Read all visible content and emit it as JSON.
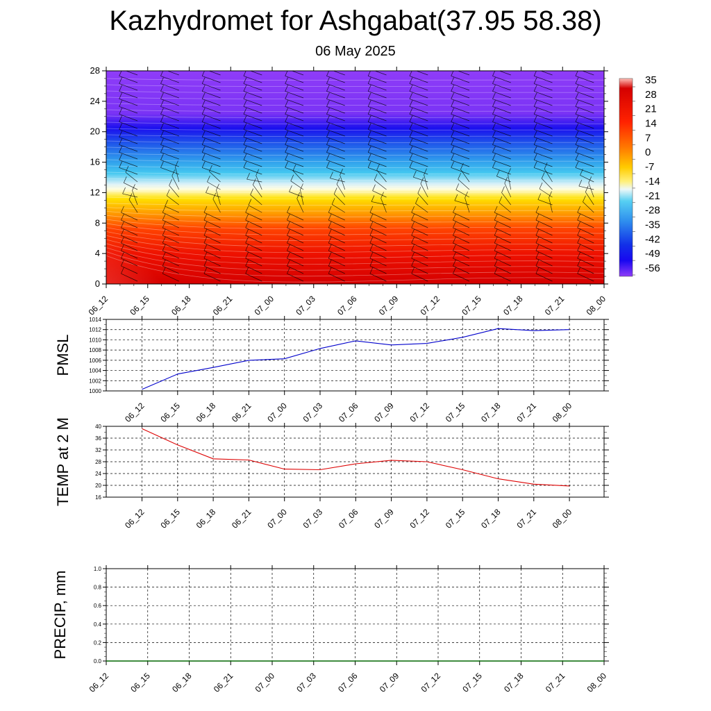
{
  "header": {
    "title": "Kazhydromet for Ashgabat(37.95 58.38)",
    "subtitle": "06 May 2025"
  },
  "time_labels": [
    "06_12",
    "06_15",
    "06_18",
    "06_21",
    "07_00",
    "07_03",
    "07_06",
    "07_09",
    "07_12",
    "07_15",
    "07_18",
    "07_21",
    "08_00"
  ],
  "chart_data": [
    {
      "type": "heatmap",
      "name": "temperature-cross-section",
      "x": [
        "06_12",
        "06_15",
        "06_18",
        "06_21",
        "07_00",
        "07_03",
        "07_06",
        "07_09",
        "07_12",
        "07_15",
        "07_18",
        "07_21",
        "08_00"
      ],
      "ylim": [
        0,
        28
      ],
      "yticks": [
        0,
        4,
        8,
        12,
        16,
        20,
        24,
        28
      ],
      "colorbar_labels": [
        "35",
        "28",
        "21",
        "14",
        "7",
        "0",
        "-7",
        "-14",
        "-21",
        "-28",
        "-35",
        "-42",
        "-49",
        "-56"
      ],
      "colorbar_range": [
        -60,
        38
      ],
      "wind_barbs": true
    },
    {
      "type": "line",
      "ylabel": "PMSL",
      "x": [
        "06_12",
        "06_15",
        "06_18",
        "06_21",
        "07_00",
        "07_03",
        "07_06",
        "07_09",
        "07_12",
        "07_15",
        "07_18",
        "07_21",
        "08_00"
      ],
      "values": [
        1000.3,
        1003.3,
        1004.6,
        1006.0,
        1006.3,
        1008.3,
        1009.8,
        1009.0,
        1009.3,
        1010.5,
        1012.2,
        1011.8,
        1012.0
      ],
      "ylim": [
        1000,
        1014
      ],
      "yticks": [
        1000,
        1002,
        1004,
        1006,
        1008,
        1010,
        1012,
        1014
      ],
      "color": "#0000cc"
    },
    {
      "type": "line",
      "ylabel": "TEMP at 2 M",
      "x": [
        "06_12",
        "06_15",
        "06_18",
        "06_21",
        "07_00",
        "07_03",
        "07_06",
        "07_09",
        "07_12",
        "07_15",
        "07_18",
        "07_21",
        "08_00"
      ],
      "values": [
        39.2,
        33.7,
        29.0,
        28.6,
        25.5,
        25.3,
        27.3,
        28.5,
        28.0,
        25.3,
        22.2,
        20.4,
        19.8
      ],
      "ylim": [
        16,
        40
      ],
      "yticks": [
        16,
        20,
        24,
        28,
        32,
        36,
        40
      ],
      "color": "#dd0000"
    },
    {
      "type": "line",
      "ylabel": "PRECIP, mm",
      "x": [
        "06_12",
        "06_15",
        "06_18",
        "06_21",
        "07_00",
        "07_03",
        "07_06",
        "07_09",
        "07_12",
        "07_15",
        "07_18",
        "07_21",
        "08_00"
      ],
      "values": [
        0,
        0,
        0,
        0,
        0,
        0,
        0,
        0,
        0,
        0,
        0,
        0,
        0
      ],
      "ylim": [
        0,
        1.0
      ],
      "yticks": [
        "0.0",
        "0.2",
        "0.4",
        "0.6",
        "0.8",
        "1.0"
      ],
      "color": "#006600"
    }
  ]
}
